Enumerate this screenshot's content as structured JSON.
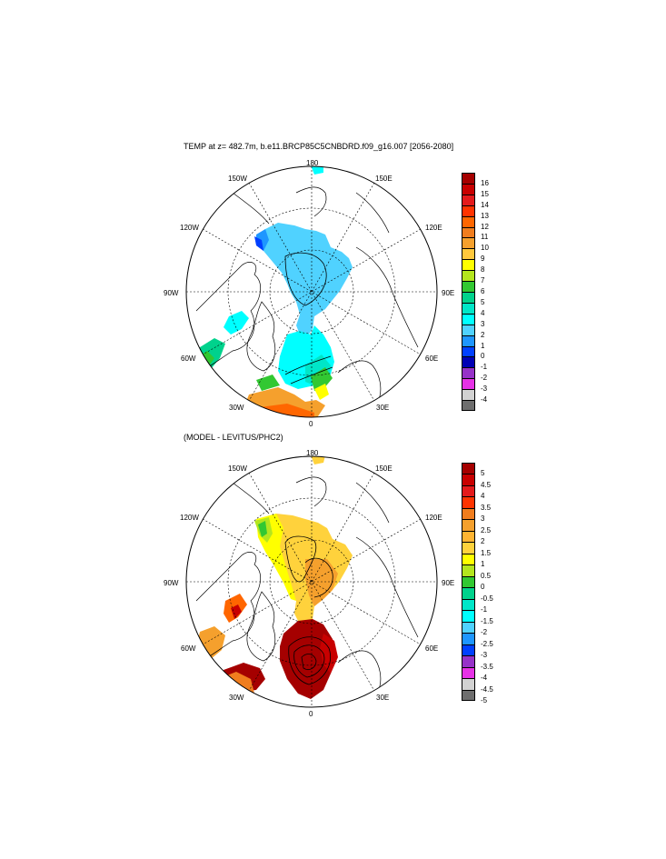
{
  "maps": [
    {
      "title": "TEMP at z= 482.7m, b.e11.BRCP85C5CNBDRD.f09_g16.007 [2056-2080]",
      "lon_labels": {
        "top": "180",
        "bottom": "0",
        "left": "90W",
        "right": "90E",
        "ul150": "150W",
        "ur150": "150E",
        "ul120": "120W",
        "ur120": "120E",
        "ll60": "60W",
        "lr60": "60E",
        "ll30": "30W",
        "lr30": "30E"
      },
      "colorbar": {
        "labels": [
          "16",
          "15",
          "14",
          "13",
          "12",
          "11",
          "10",
          "9",
          "8",
          "7",
          "6",
          "5",
          "4",
          "3",
          "2",
          "1",
          "0",
          "-1",
          "-2",
          "-3",
          "-4"
        ],
        "colors": [
          "#a50000",
          "#c80000",
          "#e41a1c",
          "#ff3300",
          "#ff6600",
          "#f07d1e",
          "#f5a02d",
          "#ffc83c",
          "#ffff00",
          "#b4e61e",
          "#32c832",
          "#00d28c",
          "#00e6c8",
          "#00ffff",
          "#50d2ff",
          "#1e96ff",
          "#0040ff",
          "#0000b4",
          "#9632c8",
          "#e632e6",
          "#d2d2d2",
          "#6e6e6e"
        ]
      }
    },
    {
      "title": "(MODEL - LEVITUS/PHC2)",
      "lon_labels": {
        "top": "180",
        "bottom": "0",
        "left": "90W",
        "right": "90E",
        "ul150": "150W",
        "ur150": "150E",
        "ul120": "120W",
        "ur120": "120E",
        "ll60": "60W",
        "lr60": "60E",
        "ll30": "30W",
        "lr30": "30E"
      },
      "colorbar": {
        "labels": [
          "5",
          "4.5",
          "4",
          "3.5",
          "3",
          "2.5",
          "2",
          "1.5",
          "1",
          "0.5",
          "0",
          "-0.5",
          "-1",
          "-1.5",
          "-2",
          "-2.5",
          "-3",
          "-3.5",
          "-4",
          "-4.5",
          "-5"
        ],
        "colors": [
          "#a50000",
          "#c80000",
          "#e41a1c",
          "#ff3300",
          "#f07d1e",
          "#f5a02d",
          "#ffb432",
          "#ffd23c",
          "#ffff00",
          "#b4e61e",
          "#32c832",
          "#00d28c",
          "#00e6c8",
          "#00ffff",
          "#50d2ff",
          "#1e96ff",
          "#0040ff",
          "#9632c8",
          "#e632e6",
          "#d2d2d2",
          "#6e6e6e"
        ]
      }
    }
  ]
}
